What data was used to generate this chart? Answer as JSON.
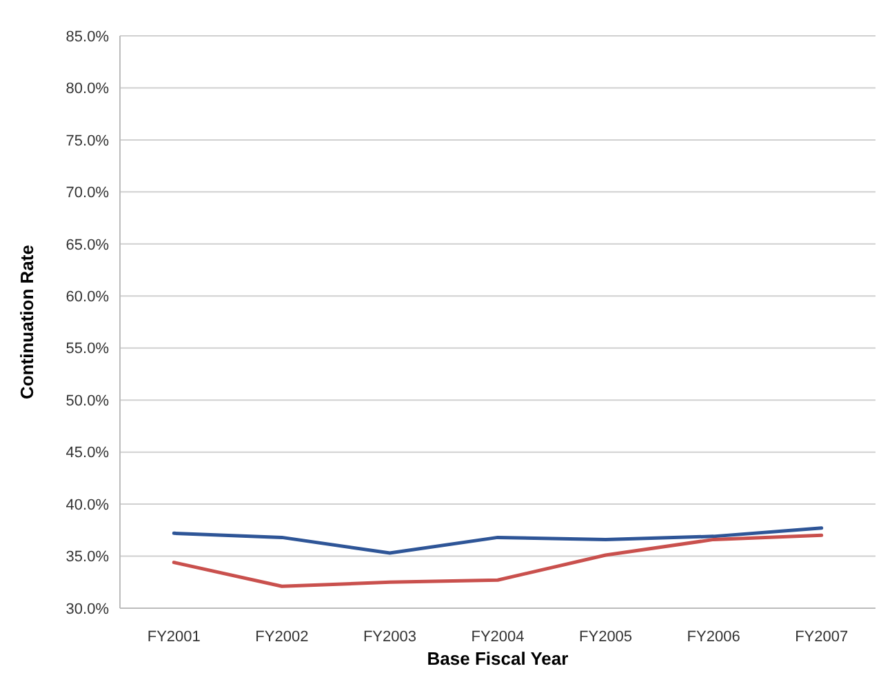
{
  "chart_data": {
    "type": "line",
    "xlabel": "Base Fiscal Year",
    "ylabel": "Continuation Rate",
    "categories": [
      "FY2001",
      "FY2002",
      "FY2003",
      "FY2004",
      "FY2005",
      "FY2006",
      "FY2007"
    ],
    "series": [
      {
        "color": "#2e5597",
        "values": [
          37.2,
          36.8,
          35.3,
          36.8,
          36.6,
          36.9,
          37.7
        ]
      },
      {
        "color": "#c9504d",
        "values": [
          34.4,
          32.1,
          32.5,
          32.7,
          35.1,
          36.6,
          37.0
        ]
      }
    ],
    "ylim": [
      30,
      85
    ],
    "yticks": [
      {
        "value": 30,
        "label": "30.0%"
      },
      {
        "value": 35,
        "label": "35.0%"
      },
      {
        "value": 40,
        "label": "40.0%"
      },
      {
        "value": 45,
        "label": "45.0%"
      },
      {
        "value": 50,
        "label": "50.0%"
      },
      {
        "value": 55,
        "label": "55.0%"
      },
      {
        "value": 60,
        "label": "60.0%"
      },
      {
        "value": 65,
        "label": "65.0%"
      },
      {
        "value": 70,
        "label": "70.0%"
      },
      {
        "value": 75,
        "label": "75.0%"
      },
      {
        "value": 80,
        "label": "80.0%"
      },
      {
        "value": 85,
        "label": "85.0%"
      }
    ],
    "grid": "y",
    "marker": "none",
    "line_style": "solid"
  }
}
